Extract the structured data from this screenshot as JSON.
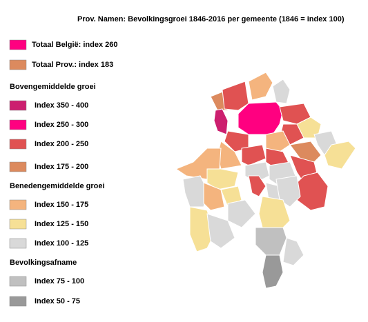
{
  "title": "Prov. Namen: Bevolkingsgroei 1846-2016 per gemeente (1846 = index 100)",
  "legend": {
    "totals": [
      {
        "label": "Totaal België: index 260",
        "color": "#ff0080"
      },
      {
        "label": "Totaal Prov.: index 183",
        "color": "#dc8a5e"
      }
    ],
    "groups": [
      {
        "heading": "Bovengemiddelde groei",
        "items": [
          {
            "label": "Index 350 - 400",
            "color": "#cc1f6f"
          },
          {
            "label": "Index 250 - 300",
            "color": "#ff0080"
          },
          {
            "label": "Index 200 - 250",
            "color": "#e05252"
          },
          {
            "label": "Index 175 - 200",
            "color": "#dc8a5e"
          }
        ]
      },
      {
        "heading": "Benedengemiddelde groei",
        "items": [
          {
            "label": "Index 150 - 175",
            "color": "#f4b47e"
          },
          {
            "label": "Index 125 - 150",
            "color": "#f6e096"
          },
          {
            "label": "Index 100 - 125",
            "color": "#d9d9d9"
          }
        ]
      },
      {
        "heading": "Bevolkingsafname",
        "items": [
          {
            "label": "Index 75 - 100",
            "color": "#c0c0c0"
          },
          {
            "label": "Index 50 - 75",
            "color": "#999999"
          }
        ]
      }
    ]
  }
}
